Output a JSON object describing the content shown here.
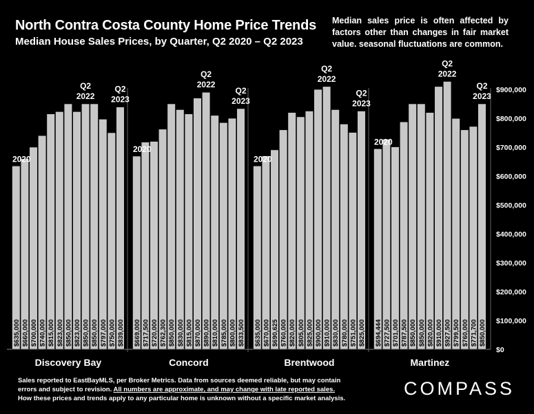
{
  "title": "North Contra Costa County Home Price Trends",
  "subtitle": "Median House Sales Prices, by Quarter, Q2 2020 – Q2 2023",
  "note": "Median sales price is often affected by factors other than changes in fair market value. seasonal fluctuations are common.",
  "footer": {
    "line1": "Sales reported to EastBayMLS, per Broker Metrics. Data from sources deemed reliable, but may contain",
    "line2_a": "errors and subject to revision. ",
    "line2_b": "All numbers are approximate, and may change with late reported sales.",
    "line3": "How these prices and trends apply to any particular home is unknown without a specific market analysis."
  },
  "brand": "COMPASS",
  "colors": {
    "background": "#000000",
    "bar": "#c8c8c8",
    "text": "#ffffff"
  },
  "chart_data": {
    "type": "bar",
    "ylim": [
      0,
      900000
    ],
    "yticks": [
      "$0",
      "$100,000",
      "$200,000",
      "$300,000",
      "$400,000",
      "$500,000",
      "$600,000",
      "$700,000",
      "$800,000",
      "$900,000"
    ],
    "grid": false,
    "groups": [
      {
        "name": "Discovery Bay",
        "values": [
          635000,
          660000,
          700000,
          740000,
          815000,
          823000,
          850000,
          823000,
          850000,
          850000,
          797000,
          750000,
          839000
        ],
        "labels": [
          "$635,000",
          "$660,000",
          "$700,000",
          "$740,000",
          "$815,000",
          "$823,000",
          "$850,000",
          "$823,000",
          "$850,000",
          "$850,000",
          "$797,000",
          "$750,000",
          "$839,000"
        ],
        "annotations": [
          {
            "index": 0,
            "text": "2020"
          },
          {
            "index": 8,
            "text": "Q2 2022"
          },
          {
            "index": 12,
            "text": "Q2 2023"
          }
        ]
      },
      {
        "name": "Concord",
        "values": [
          669000,
          717500,
          720000,
          762300,
          850000,
          830000,
          815000,
          870000,
          890000,
          810000,
          785000,
          800000,
          833500
        ],
        "labels": [
          "$669,000",
          "$717,500",
          "$720,000",
          "$762,300",
          "$850,000",
          "$830,000",
          "$815,000",
          "$870,000",
          "$890,000",
          "$810,000",
          "$785,000",
          "$800,000",
          "$833,500"
        ],
        "annotations": [
          {
            "index": 0,
            "text": "2020"
          },
          {
            "index": 8,
            "text": "Q2 2022"
          },
          {
            "index": 12,
            "text": "Q2 2023"
          }
        ]
      },
      {
        "name": "Brentwood",
        "values": [
          635000,
          670000,
          690625,
          760000,
          820000,
          805000,
          825000,
          900000,
          910000,
          830000,
          780000,
          751000,
          825000
        ],
        "labels": [
          "$635,000",
          "$670,000",
          "$690,625",
          "$760,000",
          "$820,000",
          "$805,000",
          "$825,000",
          "$900,000",
          "$910,000",
          "$830,000",
          "$780,000",
          "$751,000",
          "$825,000"
        ],
        "annotations": [
          {
            "index": 0,
            "text": "2020"
          },
          {
            "index": 8,
            "text": "Q2 2022"
          },
          {
            "index": 12,
            "text": "Q2 2023"
          }
        ]
      },
      {
        "name": "Martinez",
        "values": [
          694444,
          727500,
          701000,
          787500,
          850000,
          850000,
          820000,
          910000,
          927500,
          799500,
          760000,
          771700,
          850000
        ],
        "labels": [
          "$694,444",
          "$727,500",
          "$701,000",
          "$787,500",
          "$850,000",
          "$850,000",
          "$820,000",
          "$910,000",
          "$927,500",
          "$799,500",
          "$760,000",
          "$771,700",
          "$850,000"
        ],
        "annotations": [
          {
            "index": 0,
            "text": "2020"
          },
          {
            "index": 8,
            "text": "Q2 2022"
          },
          {
            "index": 12,
            "text": "Q2 2023"
          }
        ]
      }
    ]
  }
}
